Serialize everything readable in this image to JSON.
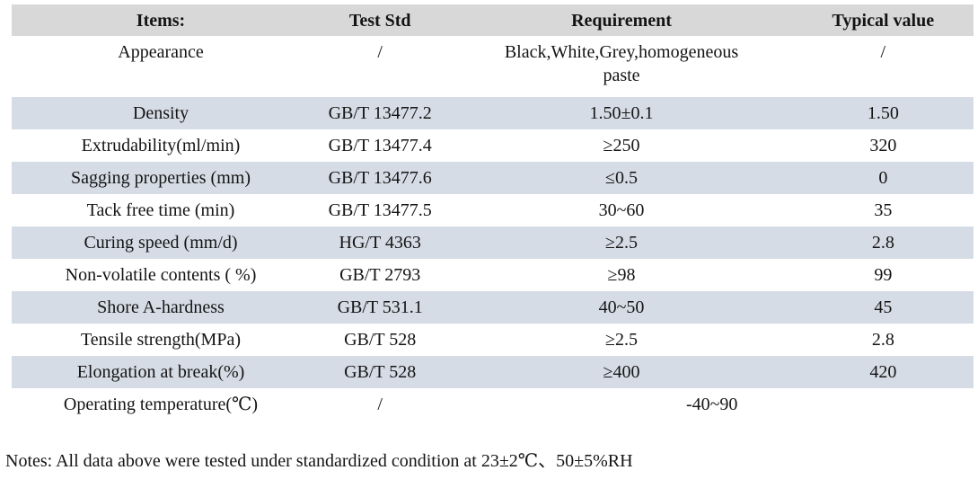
{
  "colors": {
    "header_bg": "#d8d8d8",
    "stripe_bg": "#d6dce6",
    "text": "#141414"
  },
  "table": {
    "columns": [
      "Items:",
      "Test Std",
      "Requirement",
      "Typical value"
    ],
    "rows": [
      {
        "cells": [
          "Appearance",
          "/",
          "Black,White,Grey,homogeneous\npaste",
          "/"
        ]
      },
      {
        "cells": [
          "Density",
          "GB/T 13477.2",
          "1.50±0.1",
          "1.50"
        ]
      },
      {
        "cells": [
          "Extrudability(ml/min)",
          "GB/T 13477.4",
          "≥250",
          "320"
        ]
      },
      {
        "cells": [
          "Sagging properties (mm)",
          "GB/T 13477.6",
          "≤0.5",
          "0"
        ]
      },
      {
        "cells": [
          "Tack free time (min)",
          "GB/T 13477.5",
          "30~60",
          "35"
        ]
      },
      {
        "cells": [
          "Curing speed (mm/d)",
          "HG/T 4363",
          "≥2.5",
          "2.8"
        ]
      },
      {
        "cells": [
          "Non-volatile contents ( %)",
          "GB/T 2793",
          "≥98",
          "99"
        ]
      },
      {
        "cells": [
          "Shore A-hardness",
          "GB/T 531.1",
          "40~50",
          "45"
        ]
      },
      {
        "cells": [
          "Tensile strength(MPa)",
          "GB/T 528",
          "≥2.5",
          "2.8"
        ]
      },
      {
        "cells": [
          "Elongation at break(%)",
          "GB/T 528",
          "≥400",
          "420"
        ]
      },
      {
        "cells": [
          "Operating temperature(℃)",
          "/",
          "-40~90"
        ],
        "colspans": [
          1,
          1,
          2
        ]
      }
    ]
  },
  "notes": {
    "text": "Notes: All data above were tested under standardized condition at 23±2℃、50±5%RH"
  }
}
